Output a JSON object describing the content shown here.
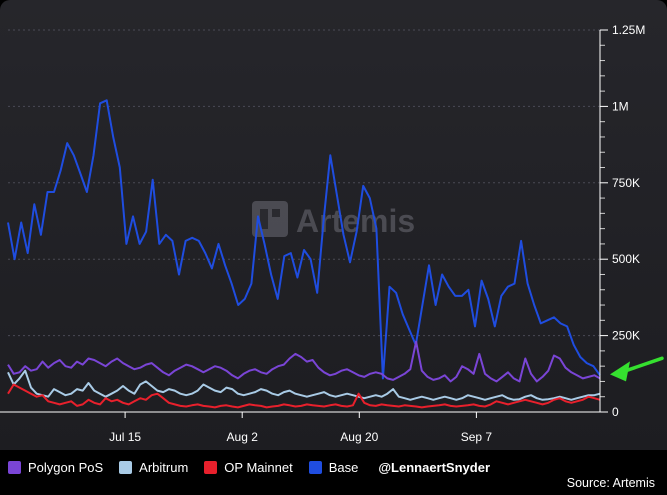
{
  "watermark": "Artemis",
  "handle": "@LennaertSnyder",
  "source": "Source: Artemis",
  "colors": {
    "polygon": "#7a45d6",
    "arbitrum": "#a9cbe6",
    "op": "#e8202c",
    "base": "#1f4de0",
    "arrow": "#35e02f"
  },
  "chart_data": {
    "type": "line",
    "x_ticks": [
      "Jul 15",
      "Aug 2",
      "Aug 20",
      "Sep 7"
    ],
    "y_ticks": [
      "0",
      "250K",
      "500K",
      "750K",
      "1M",
      "1.25M"
    ],
    "ylim": [
      0,
      1250000
    ],
    "x_start": "2023-06-27",
    "x_end": "2023-09-26",
    "annotation": "arrow pointing to latest Base value",
    "series": [
      {
        "name": "Polygon PoS",
        "color": "#7a45d6",
        "values": [
          155000,
          125000,
          130000,
          150000,
          135000,
          140000,
          165000,
          145000,
          160000,
          170000,
          150000,
          145000,
          165000,
          155000,
          175000,
          170000,
          160000,
          150000,
          165000,
          175000,
          160000,
          150000,
          140000,
          145000,
          155000,
          160000,
          145000,
          130000,
          120000,
          135000,
          145000,
          155000,
          150000,
          140000,
          130000,
          140000,
          150000,
          145000,
          135000,
          120000,
          110000,
          125000,
          135000,
          140000,
          130000,
          125000,
          140000,
          150000,
          155000,
          175000,
          190000,
          180000,
          165000,
          170000,
          145000,
          130000,
          120000,
          125000,
          135000,
          140000,
          130000,
          120000,
          115000,
          125000,
          130000,
          125000,
          110000,
          105000,
          115000,
          125000,
          140000,
          230000,
          135000,
          115000,
          105000,
          110000,
          120000,
          100000,
          115000,
          150000,
          140000,
          125000,
          190000,
          125000,
          110000,
          100000,
          115000,
          130000,
          110000,
          100000,
          175000,
          125000,
          100000,
          115000,
          135000,
          185000,
          175000,
          145000,
          130000,
          120000,
          110000,
          115000,
          120000,
          110000
        ]
      },
      {
        "name": "Arbitrum",
        "color": "#a9cbe6",
        "values": [
          130000,
          90000,
          110000,
          135000,
          80000,
          60000,
          55000,
          50000,
          75000,
          65000,
          55000,
          60000,
          75000,
          70000,
          95000,
          70000,
          60000,
          50000,
          60000,
          70000,
          85000,
          70000,
          60000,
          90000,
          100000,
          85000,
          70000,
          65000,
          75000,
          70000,
          60000,
          55000,
          60000,
          70000,
          90000,
          80000,
          70000,
          65000,
          80000,
          75000,
          60000,
          55000,
          60000,
          65000,
          75000,
          70000,
          60000,
          55000,
          65000,
          70000,
          60000,
          55000,
          50000,
          55000,
          60000,
          65000,
          55000,
          50000,
          55000,
          60000,
          55000,
          50000,
          45000,
          50000,
          55000,
          50000,
          60000,
          75000,
          50000,
          45000,
          40000,
          45000,
          50000,
          45000,
          40000,
          45000,
          50000,
          45000,
          40000,
          45000,
          55000,
          50000,
          45000,
          40000,
          45000,
          50000,
          55000,
          45000,
          40000,
          42000,
          50000,
          55000,
          45000,
          40000,
          42000,
          45000,
          50000,
          45000,
          40000,
          45000,
          50000,
          55000,
          55000,
          60000
        ]
      },
      {
        "name": "OP Mainnet",
        "color": "#e8202c",
        "values": [
          60000,
          90000,
          80000,
          70000,
          60000,
          50000,
          55000,
          35000,
          30000,
          25000,
          30000,
          35000,
          20000,
          25000,
          40000,
          30000,
          25000,
          45000,
          35000,
          40000,
          30000,
          25000,
          35000,
          45000,
          40000,
          55000,
          60000,
          45000,
          30000,
          25000,
          20000,
          18000,
          22000,
          25000,
          20000,
          18000,
          15000,
          20000,
          22000,
          18000,
          15000,
          20000,
          25000,
          22000,
          20000,
          15000,
          18000,
          20000,
          25000,
          22000,
          18000,
          20000,
          25000,
          22000,
          20000,
          18000,
          22000,
          25000,
          20000,
          18000,
          22000,
          60000,
          30000,
          22000,
          20000,
          25000,
          22000,
          20000,
          18000,
          22000,
          20000,
          18000,
          15000,
          18000,
          20000,
          22000,
          25000,
          20000,
          18000,
          20000,
          22000,
          25000,
          20000,
          18000,
          25000,
          35000,
          30000,
          25000,
          30000,
          35000,
          40000,
          35000,
          30000,
          25000,
          30000,
          40000,
          45000,
          35000,
          30000,
          35000,
          40000,
          50000,
          45000,
          40000
        ]
      },
      {
        "name": "Base",
        "color": "#1f4de0",
        "values": [
          620000,
          500000,
          620000,
          520000,
          680000,
          580000,
          720000,
          720000,
          790000,
          880000,
          840000,
          780000,
          720000,
          840000,
          1010000,
          1020000,
          900000,
          800000,
          550000,
          640000,
          550000,
          590000,
          760000,
          550000,
          580000,
          560000,
          450000,
          560000,
          570000,
          560000,
          520000,
          470000,
          550000,
          480000,
          420000,
          350000,
          370000,
          420000,
          640000,
          550000,
          450000,
          370000,
          510000,
          520000,
          440000,
          530000,
          500000,
          390000,
          630000,
          840000,
          710000,
          580000,
          490000,
          590000,
          740000,
          700000,
          600000,
          110000,
          410000,
          390000,
          320000,
          270000,
          220000,
          350000,
          480000,
          350000,
          450000,
          410000,
          380000,
          380000,
          400000,
          280000,
          430000,
          370000,
          280000,
          380000,
          410000,
          420000,
          560000,
          420000,
          350000,
          290000,
          300000,
          310000,
          290000,
          280000,
          220000,
          180000,
          160000,
          150000,
          120000
        ]
      }
    ]
  }
}
